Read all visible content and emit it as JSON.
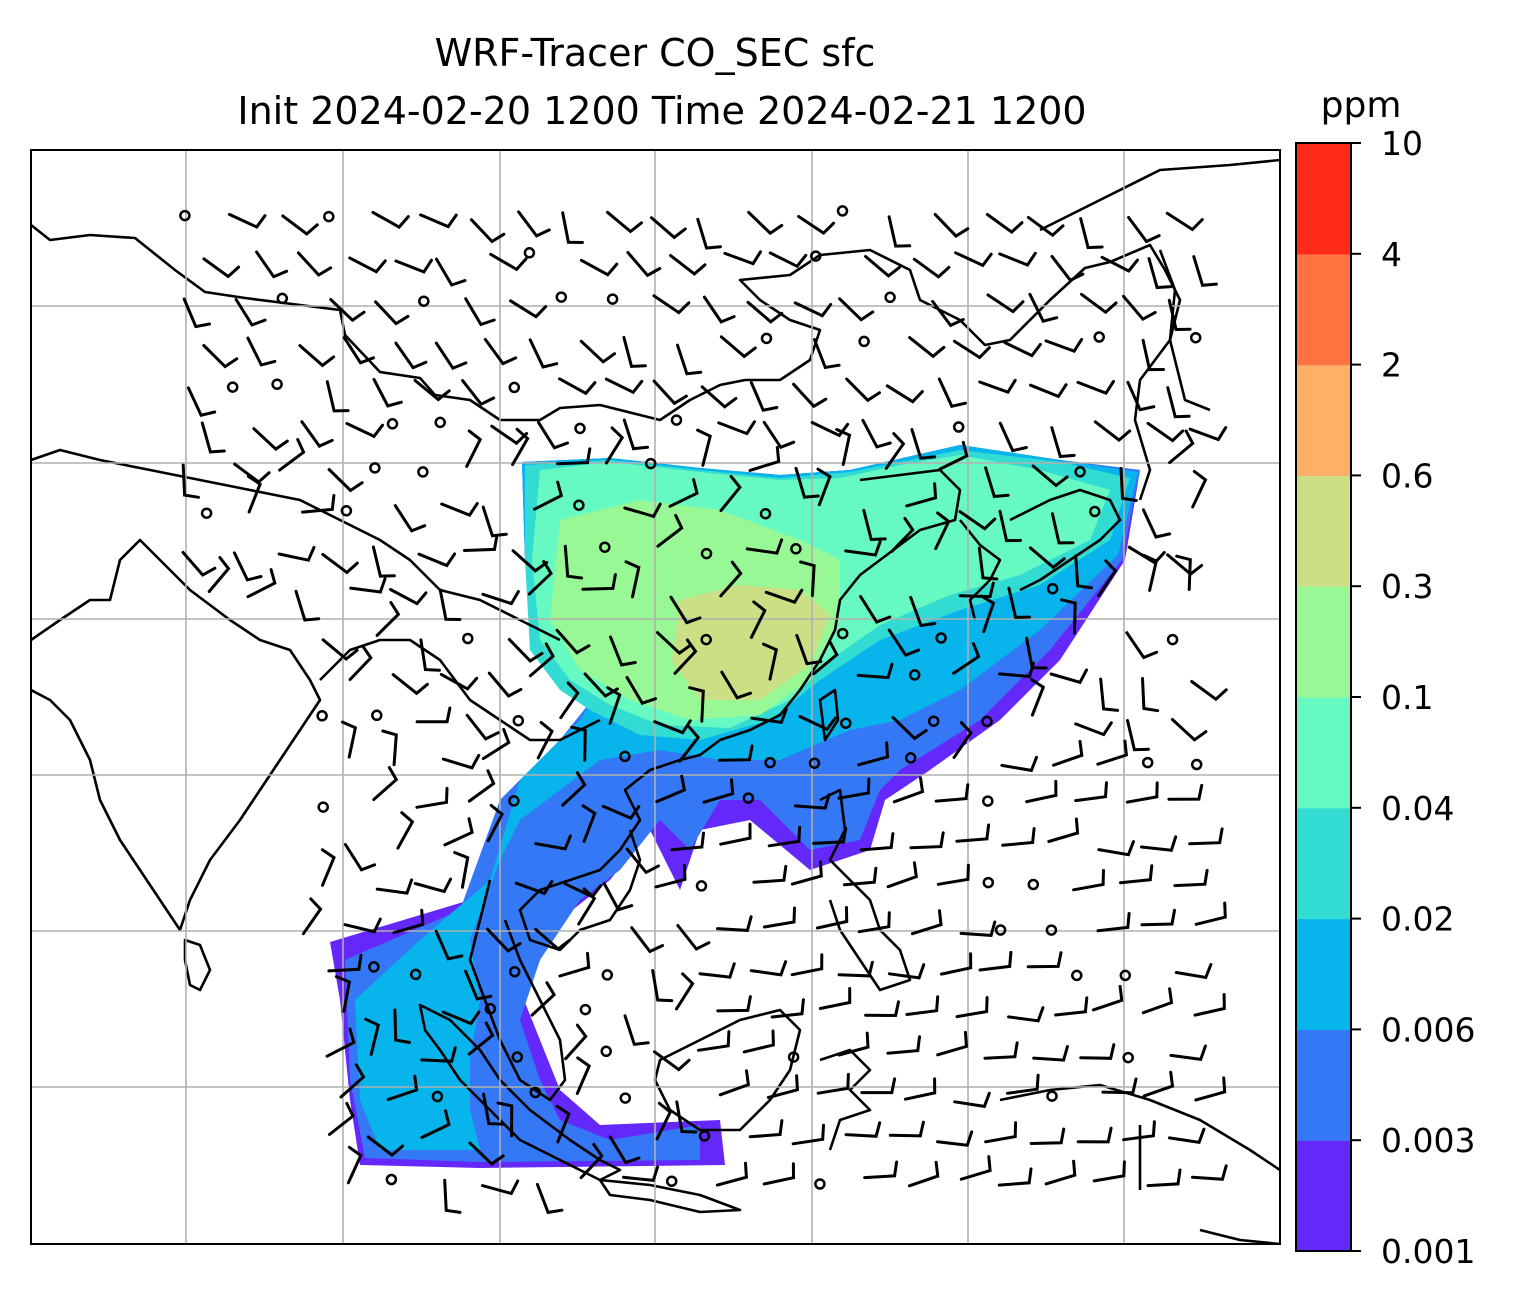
{
  "figure": {
    "title_line1": "WRF-Tracer CO_SEC sfc",
    "title_line2": "Init 2024-02-20 1200 Time 2024-02-21 1200"
  },
  "colorbar": {
    "unit": "ppm",
    "levels": [
      "0.001",
      "0.003",
      "0.006",
      "0.02",
      "0.04",
      "0.1",
      "0.3",
      "0.6",
      "2",
      "4",
      "10"
    ],
    "colors": [
      "#6428fa",
      "#3478f5",
      "#08b4ec",
      "#33dcd2",
      "#66fac2",
      "#99f896",
      "#cbdf85",
      "#ffb066",
      "#ff7340",
      "#ff2a1a"
    ]
  },
  "map": {
    "gridlines": true,
    "coastlines": true,
    "wind_barbs": true,
    "field": "CO_SEC surface tracer concentration"
  }
}
